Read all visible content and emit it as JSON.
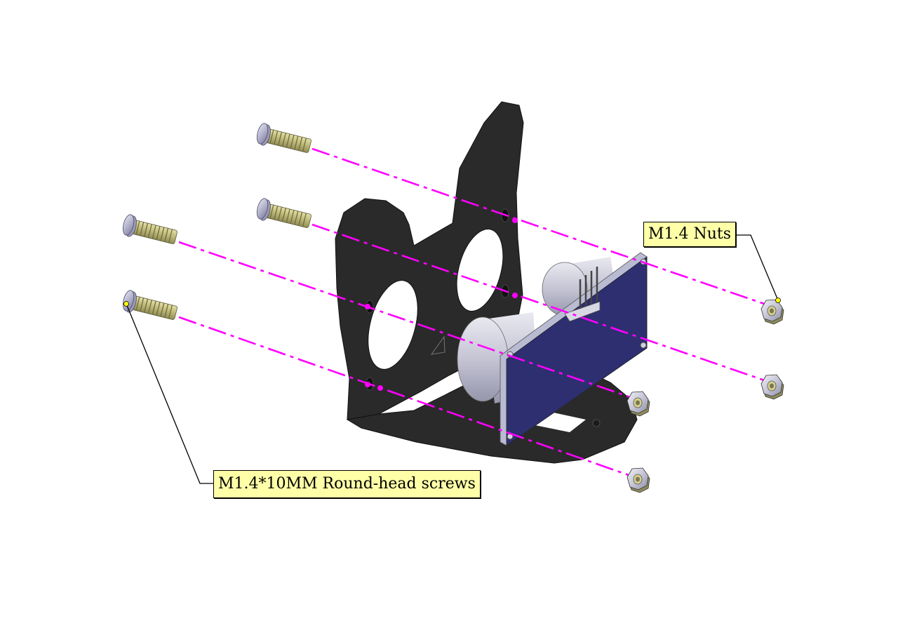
{
  "labels": {
    "nuts": "M1.4 Nuts",
    "screws": "M1.4*10MM Round-head screws"
  },
  "colors": {
    "background": "#ffffff",
    "bracket": "#2a2a2a",
    "pcb": "#2e2f70",
    "pcb_edge": "#b9bbd2",
    "sensor": "#c8c8d8",
    "screw_thread": "#c8c488",
    "nut": "#c8c8d6",
    "guide_line": "#ff00ff",
    "callout_fill": "#ffffa8",
    "leader_dot": "#ffff00"
  },
  "parts": {
    "screws": [
      "screw",
      "screw",
      "screw",
      "screw"
    ],
    "nuts": [
      "nut",
      "nut",
      "nut",
      "nut"
    ]
  }
}
